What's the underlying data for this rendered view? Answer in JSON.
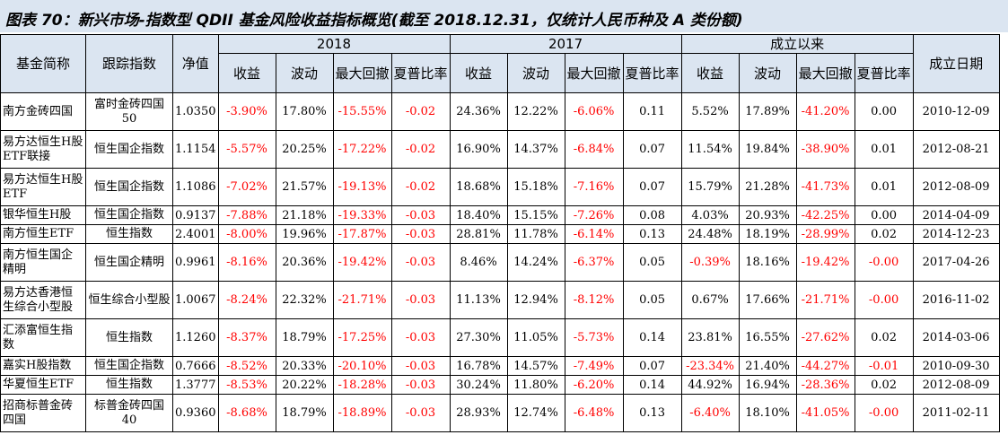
{
  "title": "图表 70：新兴市场-指数型 QDII 基金风险收益指标概览(截至 2018.12.31，仅统计人民币种及 A 类份额)",
  "header": {
    "name": "基金简称",
    "index": "跟踪指数",
    "nav": "净值",
    "group_2018": "2018",
    "group_2017": "2017",
    "group_since": "成立以来",
    "inception": "成立日期",
    "sub": {
      "ret": "收益",
      "vol": "波动",
      "dd": "最大回撤",
      "sharpe": "夏普比率"
    }
  },
  "rows": [
    {
      "name": "南方金砖四国",
      "index": "富时金砖四国50",
      "nav": "1.0350",
      "r18": "-3.90%",
      "v18": "17.80%",
      "d18": "-15.55%",
      "s18": "-0.02",
      "r17": "24.36%",
      "v17": "12.22%",
      "d17": "-6.06%",
      "s17": "0.11",
      "rs": "5.52%",
      "vs": "17.89%",
      "ds": "-41.20%",
      "ss": "0.00",
      "date": "2010-12-09"
    },
    {
      "name": "易方达恒生H股ETF联接",
      "index": "恒生国企指数",
      "nav": "1.1154",
      "r18": "-5.57%",
      "v18": "20.25%",
      "d18": "-17.22%",
      "s18": "-0.02",
      "r17": "16.90%",
      "v17": "14.37%",
      "d17": "-6.84%",
      "s17": "0.07",
      "rs": "11.54%",
      "vs": "19.84%",
      "ds": "-38.90%",
      "ss": "0.01",
      "date": "2012-08-21"
    },
    {
      "name": "易方达恒生H股ETF",
      "index": "恒生国企指数",
      "nav": "1.1086",
      "r18": "-7.02%",
      "v18": "21.57%",
      "d18": "-19.13%",
      "s18": "-0.02",
      "r17": "18.68%",
      "v17": "15.18%",
      "d17": "-7.16%",
      "s17": "0.07",
      "rs": "15.79%",
      "vs": "21.28%",
      "ds": "-41.73%",
      "ss": "0.01",
      "date": "2012-08-09"
    },
    {
      "name": "银华恒生H股",
      "index": "恒生国企指数",
      "nav": "0.9137",
      "r18": "-7.88%",
      "v18": "21.18%",
      "d18": "-19.33%",
      "s18": "-0.03",
      "r17": "18.40%",
      "v17": "15.15%",
      "d17": "-7.26%",
      "s17": "0.08",
      "rs": "4.03%",
      "vs": "20.93%",
      "ds": "-42.25%",
      "ss": "0.00",
      "date": "2014-04-09"
    },
    {
      "name": "南方恒生ETF",
      "index": "恒生指数",
      "nav": "2.4001",
      "r18": "-8.00%",
      "v18": "19.96%",
      "d18": "-17.87%",
      "s18": "-0.03",
      "r17": "28.81%",
      "v17": "11.78%",
      "d17": "-6.14%",
      "s17": "0.13",
      "rs": "24.48%",
      "vs": "18.19%",
      "ds": "-28.99%",
      "ss": "0.02",
      "date": "2014-12-23"
    },
    {
      "name": "南方恒生国企精明",
      "index": "恒生国企精明",
      "nav": "0.9961",
      "r18": "-8.16%",
      "v18": "20.36%",
      "d18": "-19.42%",
      "s18": "-0.03",
      "r17": "8.46%",
      "v17": "14.24%",
      "d17": "-6.37%",
      "s17": "0.05",
      "rs": "-0.39%",
      "vs": "18.16%",
      "ds": "-19.42%",
      "ss": "-0.00",
      "date": "2017-04-26"
    },
    {
      "name": "易方达香港恒生综合小型股",
      "index": "恒生综合小型股",
      "nav": "1.0067",
      "r18": "-8.24%",
      "v18": "22.32%",
      "d18": "-21.71%",
      "s18": "-0.03",
      "r17": "11.13%",
      "v17": "12.94%",
      "d17": "-8.12%",
      "s17": "0.05",
      "rs": "0.67%",
      "vs": "17.66%",
      "ds": "-21.71%",
      "ss": "-0.00",
      "date": "2016-11-02"
    },
    {
      "name": "汇添富恒生指数",
      "index": "恒生指数",
      "nav": "1.1260",
      "r18": "-8.37%",
      "v18": "18.79%",
      "d18": "-17.25%",
      "s18": "-0.03",
      "r17": "27.30%",
      "v17": "11.05%",
      "d17": "-5.73%",
      "s17": "0.14",
      "rs": "23.81%",
      "vs": "16.55%",
      "ds": "-27.62%",
      "ss": "0.02",
      "date": "2014-03-06"
    },
    {
      "name": "嘉实H股指数",
      "index": "恒生国企指数",
      "nav": "0.7666",
      "r18": "-8.52%",
      "v18": "20.33%",
      "d18": "-20.10%",
      "s18": "-0.03",
      "r17": "16.78%",
      "v17": "14.57%",
      "d17": "-7.49%",
      "s17": "0.07",
      "rs": "-23.34%",
      "vs": "21.40%",
      "ds": "-44.27%",
      "ss": "-0.01",
      "date": "2010-09-30"
    },
    {
      "name": "华夏恒生ETF",
      "index": "恒生指数",
      "nav": "1.3777",
      "r18": "-8.53%",
      "v18": "20.22%",
      "d18": "-18.28%",
      "s18": "-0.03",
      "r17": "30.24%",
      "v17": "11.80%",
      "d17": "-6.20%",
      "s17": "0.14",
      "rs": "44.92%",
      "vs": "16.94%",
      "ds": "-28.36%",
      "ss": "0.02",
      "date": "2012-08-09"
    },
    {
      "name": "招商标普金砖四国",
      "index": "标普金砖四国40",
      "nav": "0.9360",
      "r18": "-8.68%",
      "v18": "18.79%",
      "d18": "-18.89%",
      "s18": "-0.03",
      "r17": "28.93%",
      "v17": "12.74%",
      "d17": "-6.48%",
      "s17": "0.13",
      "rs": "-6.40%",
      "vs": "18.10%",
      "ds": "-41.05%",
      "ss": "-0.00",
      "date": "2011-02-11"
    }
  ]
}
